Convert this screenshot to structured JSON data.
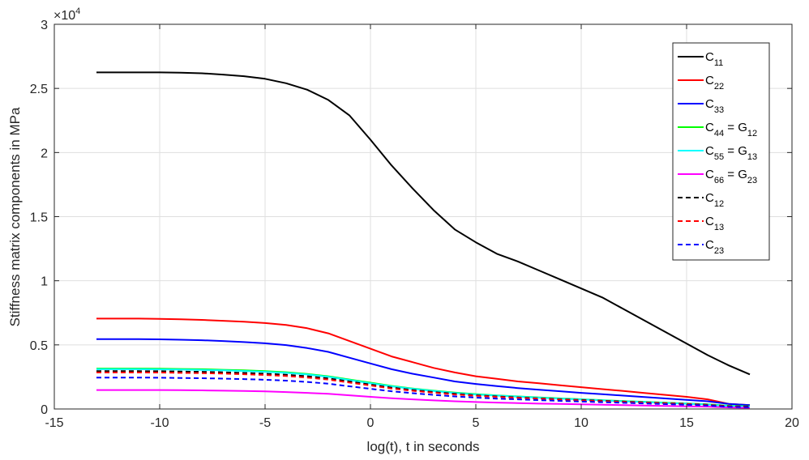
{
  "chart_data": {
    "type": "line",
    "xlabel": "log(t), t in seconds",
    "ylabel": "Stiffness matrix components in MPa",
    "xlim": [
      -15,
      20
    ],
    "ylim": [
      0,
      30000
    ],
    "x_ticks": [
      -15,
      -10,
      -5,
      0,
      5,
      10,
      15,
      20
    ],
    "x_tick_labels": [
      "-15",
      "-10",
      "-5",
      "0",
      "5",
      "10",
      "15",
      "20"
    ],
    "y_ticks": [
      0,
      5000,
      10000,
      15000,
      20000,
      25000,
      30000
    ],
    "y_tick_labels": [
      "0",
      "0.5",
      "1",
      "1.5",
      "2",
      "2.5",
      "3"
    ],
    "y_exponent_base": "×10",
    "y_exponent_power": "4",
    "grid": true,
    "legend_position": "top-right",
    "x": [
      -13,
      -12,
      -11,
      -10,
      -9,
      -8,
      -7,
      -6,
      -5,
      -4,
      -3,
      -2,
      -1,
      0,
      1,
      2,
      3,
      4,
      5,
      6,
      7,
      8,
      9,
      10,
      11,
      12,
      13,
      14,
      15,
      16,
      17,
      18
    ],
    "series": [
      {
        "name": "C11",
        "label_main": "C",
        "label_sub": "11",
        "label_eq": "",
        "label_eq_sub": "",
        "color": "#000000",
        "dashed": false,
        "values": [
          26250,
          26250,
          26250,
          26250,
          26230,
          26180,
          26080,
          25950,
          25750,
          25400,
          24900,
          24100,
          22900,
          21000,
          19000,
          17200,
          15500,
          14000,
          13000,
          12100,
          11500,
          10800,
          10100,
          9400,
          8700,
          7800,
          6900,
          6000,
          5100,
          4200,
          3400,
          2700
        ]
      },
      {
        "name": "C22",
        "label_main": "C",
        "label_sub": "22",
        "label_eq": "",
        "label_eq_sub": "",
        "color": "#ff0000",
        "dashed": false,
        "values": [
          7050,
          7050,
          7050,
          7030,
          7000,
          6950,
          6880,
          6800,
          6700,
          6550,
          6300,
          5900,
          5300,
          4700,
          4100,
          3650,
          3200,
          2850,
          2550,
          2350,
          2150,
          2000,
          1850,
          1700,
          1550,
          1400,
          1250,
          1100,
          950,
          750,
          400,
          300
        ]
      },
      {
        "name": "C33",
        "label_main": "C",
        "label_sub": "33",
        "label_eq": "",
        "label_eq_sub": "",
        "color": "#0000ff",
        "dashed": false,
        "values": [
          5450,
          5450,
          5450,
          5430,
          5400,
          5360,
          5300,
          5220,
          5120,
          4980,
          4750,
          4450,
          4000,
          3550,
          3100,
          2750,
          2450,
          2150,
          1950,
          1780,
          1630,
          1500,
          1380,
          1260,
          1150,
          1040,
          930,
          820,
          710,
          600,
          400,
          300
        ]
      },
      {
        "name": "C44 = G12",
        "label_main": "C",
        "label_sub": "44",
        "label_eq": " = G",
        "label_eq_sub": "12",
        "color": "#00ff00",
        "dashed": false,
        "values": [
          3150,
          3150,
          3150,
          3140,
          3120,
          3100,
          3060,
          3010,
          2950,
          2870,
          2730,
          2550,
          2300,
          2050,
          1800,
          1600,
          1430,
          1280,
          1160,
          1060,
          980,
          900,
          830,
          760,
          690,
          620,
          560,
          490,
          430,
          360,
          250,
          200
        ]
      },
      {
        "name": "C55 = G13",
        "label_main": "C",
        "label_sub": "55",
        "label_eq": " = G",
        "label_eq_sub": "13",
        "color": "#00ffff",
        "dashed": false,
        "values": [
          3100,
          3100,
          3100,
          3090,
          3070,
          3050,
          3010,
          2960,
          2900,
          2820,
          2690,
          2510,
          2260,
          2010,
          1770,
          1570,
          1400,
          1250,
          1130,
          1040,
          960,
          880,
          810,
          740,
          670,
          600,
          540,
          470,
          410,
          340,
          230,
          180
        ]
      },
      {
        "name": "C66 = G23",
        "label_main": "C",
        "label_sub": "66",
        "label_eq": " = G",
        "label_eq_sub": "23",
        "color": "#ff00ff",
        "dashed": false,
        "values": [
          1480,
          1480,
          1480,
          1475,
          1465,
          1450,
          1430,
          1400,
          1370,
          1320,
          1260,
          1180,
          1070,
          950,
          840,
          750,
          670,
          600,
          545,
          500,
          460,
          420,
          390,
          360,
          330,
          300,
          270,
          240,
          210,
          180,
          120,
          90
        ]
      },
      {
        "name": "C12",
        "label_main": "C",
        "label_sub": "12",
        "label_eq": "",
        "label_eq_sub": "",
        "color": "#000000",
        "dashed": true,
        "values": [
          2950,
          2950,
          2950,
          2940,
          2920,
          2900,
          2860,
          2810,
          2750,
          2670,
          2550,
          2380,
          2150,
          1900,
          1670,
          1480,
          1320,
          1180,
          1070,
          980,
          900,
          830,
          760,
          700,
          640,
          580,
          520,
          460,
          400,
          330,
          220,
          180
        ]
      },
      {
        "name": "C13",
        "label_main": "C",
        "label_sub": "13",
        "label_eq": "",
        "label_eq_sub": "",
        "color": "#ff0000",
        "dashed": true,
        "values": [
          2850,
          2850,
          2850,
          2840,
          2820,
          2800,
          2760,
          2710,
          2650,
          2570,
          2450,
          2290,
          2060,
          1830,
          1600,
          1420,
          1270,
          1130,
          1030,
          940,
          870,
          800,
          730,
          670,
          610,
          550,
          500,
          440,
          380,
          310,
          200,
          160
        ]
      },
      {
        "name": "C23",
        "label_main": "C",
        "label_sub": "23",
        "label_eq": "",
        "label_eq_sub": "",
        "color": "#0000ff",
        "dashed": true,
        "values": [
          2450,
          2450,
          2450,
          2440,
          2420,
          2400,
          2370,
          2330,
          2280,
          2210,
          2110,
          1970,
          1770,
          1570,
          1380,
          1230,
          1100,
          980,
          890,
          810,
          750,
          690,
          630,
          580,
          530,
          480,
          430,
          380,
          330,
          270,
          170,
          130
        ]
      }
    ]
  }
}
